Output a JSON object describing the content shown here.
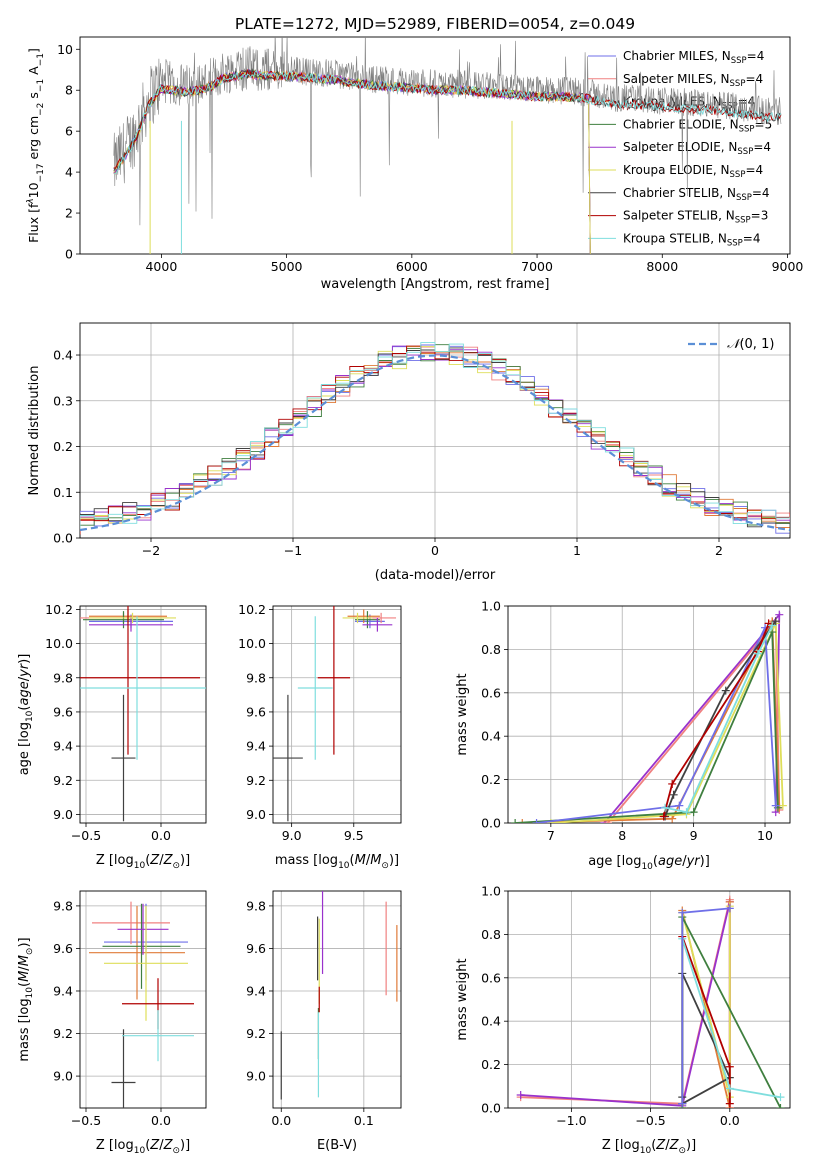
{
  "figure": {
    "title": "PLATE=1272, MJD=52989, FIBERID=0054, z=0.049"
  },
  "colors": {
    "Chabrier MILES": "#6f6fe8",
    "Salpeter MILES": "#f08080",
    "Kroupa MILES": "#e07b39",
    "Chabrier ELODIE": "#3f7f3f",
    "Salpeter ELODIE": "#9932cc",
    "Kroupa ELODIE": "#dede5a",
    "Chabrier STELIB": "#404040",
    "Salpeter STELIB": "#b00000",
    "Kroupa STELIB": "#7fdede",
    "data": "#808080",
    "gaussian": "#5b8fd6",
    "grid": "#b0b0b0"
  },
  "chart_data": [
    {
      "id": "spectrum",
      "type": "line",
      "title": "PLATE=1272, MJD=52989, FIBERID=0054, z=0.049",
      "xlabel": "wavelength [Angstrom, rest frame]",
      "ylabel_parts": [
        "Flux [f",
        "λ",
        "10",
        "−17",
        " erg cm",
        "−2",
        " s",
        "−1",
        " A",
        "−1",
        "]"
      ],
      "xlim": [
        3350,
        9020
      ],
      "ylim": [
        0,
        10.6
      ],
      "xticks": [
        4000,
        5000,
        6000,
        7000,
        8000,
        9000
      ],
      "yticks": [
        0,
        2,
        4,
        6,
        8,
        10
      ],
      "grid": false,
      "legend_position": "upper right",
      "legend": [
        {
          "label": "Chabrier MILES, N",
          "sub": "SSP",
          "suffix": "=4"
        },
        {
          "label": "Salpeter MILES, N",
          "sub": "SSP",
          "suffix": "=4"
        },
        {
          "label": "Kroupa MILES, N",
          "sub": "SSP",
          "suffix": "=4"
        },
        {
          "label": "Chabrier ELODIE, N",
          "sub": "SSP",
          "suffix": "=5"
        },
        {
          "label": "Salpeter ELODIE, N",
          "sub": "SSP",
          "suffix": "=4"
        },
        {
          "label": "Kroupa ELODIE, N",
          "sub": "SSP",
          "suffix": "=4"
        },
        {
          "label": "Chabrier STELIB, N",
          "sub": "SSP",
          "suffix": "=4"
        },
        {
          "label": "Salpeter STELIB, N",
          "sub": "SSP",
          "suffix": "=3"
        },
        {
          "label": "Kroupa STELIB, N",
          "sub": "SSP",
          "suffix": "=4"
        }
      ],
      "continuum": [
        [
          3620,
          4.3
        ],
        [
          3700,
          5.0
        ],
        [
          3800,
          6.0
        ],
        [
          3900,
          7.6
        ],
        [
          4000,
          8.4
        ],
        [
          4100,
          8.3
        ],
        [
          4200,
          8.2
        ],
        [
          4300,
          8.3
        ],
        [
          4400,
          8.5
        ],
        [
          4500,
          8.9
        ],
        [
          4600,
          9.0
        ],
        [
          4700,
          9.1
        ],
        [
          4800,
          9.0
        ],
        [
          5000,
          9.0
        ],
        [
          5200,
          8.9
        ],
        [
          5400,
          8.8
        ],
        [
          5600,
          8.6
        ],
        [
          5800,
          8.5
        ],
        [
          6000,
          8.4
        ],
        [
          6200,
          8.3
        ],
        [
          6400,
          8.3
        ],
        [
          6600,
          8.2
        ],
        [
          6800,
          8.1
        ],
        [
          7000,
          8.0
        ],
        [
          7200,
          8.0
        ],
        [
          7400,
          7.9
        ],
        [
          7600,
          7.6
        ],
        [
          7800,
          7.6
        ],
        [
          8000,
          7.5
        ],
        [
          8200,
          7.4
        ],
        [
          8400,
          7.3
        ],
        [
          8600,
          7.2
        ],
        [
          8800,
          7.0
        ],
        [
          8950,
          7.0
        ]
      ]
    },
    {
      "id": "residuals",
      "type": "histogram",
      "xlabel": "(data-model)/error",
      "ylabel": "Normed distribution",
      "xlim": [
        -2.5,
        2.5
      ],
      "ylim": [
        0,
        0.47
      ],
      "xticks": [
        -2,
        -1,
        0,
        1,
        2
      ],
      "yticks": [
        0.0,
        0.1,
        0.2,
        0.3,
        0.4
      ],
      "grid": true,
      "legend_position": "upper right",
      "legend": "N(0,1)"
    },
    {
      "id": "age_vs_Z",
      "type": "errorbar",
      "xlabel": "Z [log10(Z/Z⊙)]",
      "ylabel": "age  [log10(age/yr)]",
      "xlim": [
        -0.54,
        0.3
      ],
      "ylim": [
        8.95,
        10.22
      ],
      "xticks": [
        -0.5,
        0.0
      ],
      "yticks": [
        9.0,
        9.2,
        9.4,
        9.6,
        9.8,
        10.0,
        10.2
      ],
      "grid": true,
      "series": [
        {
          "name": "Chabrier MILES",
          "x": -0.2,
          "y": 10.13,
          "xerr": 0.28,
          "yerr": 0.04
        },
        {
          "name": "Salpeter MILES",
          "x": -0.25,
          "y": 10.15,
          "xerr": 0.3,
          "yerr": 0.03
        },
        {
          "name": "Kroupa MILES",
          "x": -0.22,
          "y": 10.16,
          "xerr": 0.26,
          "yerr": 0.04
        },
        {
          "name": "Chabrier ELODIE",
          "x": -0.25,
          "y": 10.14,
          "xerr": 0.27,
          "yerr": 0.05
        },
        {
          "name": "Salpeter ELODIE",
          "x": -0.2,
          "y": 10.11,
          "xerr": 0.28,
          "yerr": 0.04
        },
        {
          "name": "Kroupa ELODIE",
          "x": -0.19,
          "y": 10.15,
          "xerr": 0.29,
          "yerr": 0.03
        },
        {
          "name": "Chabrier STELIB",
          "x": -0.25,
          "y": 9.33,
          "xerr": 0.08,
          "yerr": 0.37
        },
        {
          "name": "Salpeter STELIB",
          "x": -0.22,
          "y": 9.8,
          "xerr": 0.48,
          "yerr": 0.45
        },
        {
          "name": "Kroupa STELIB",
          "x": -0.16,
          "y": 9.74,
          "xerr": 0.46,
          "yerr": 0.42
        }
      ]
    },
    {
      "id": "age_vs_mass",
      "type": "errorbar",
      "xlabel": "mass [log10(M/M⊙)]",
      "xlim": [
        8.85,
        9.88
      ],
      "ylim": [
        8.95,
        10.22
      ],
      "xticks": [
        9.0,
        9.5
      ],
      "yticks": [
        9.0,
        9.2,
        9.4,
        9.6,
        9.8,
        10.0,
        10.2
      ],
      "grid": true,
      "series": [
        {
          "name": "Chabrier MILES",
          "x": 9.63,
          "y": 10.13,
          "xerr": 0.12,
          "yerr": 0.04
        },
        {
          "name": "Salpeter MILES",
          "x": 9.72,
          "y": 10.15,
          "xerr": 0.12,
          "yerr": 0.03
        },
        {
          "name": "Kroupa MILES",
          "x": 9.58,
          "y": 10.16,
          "xerr": 0.13,
          "yerr": 0.04
        },
        {
          "name": "Chabrier ELODIE",
          "x": 9.61,
          "y": 10.14,
          "xerr": 0.1,
          "yerr": 0.05
        },
        {
          "name": "Salpeter ELODIE",
          "x": 9.69,
          "y": 10.11,
          "xerr": 0.12,
          "yerr": 0.04
        },
        {
          "name": "Kroupa ELODIE",
          "x": 9.53,
          "y": 10.15,
          "xerr": 0.12,
          "yerr": 0.03
        },
        {
          "name": "Chabrier STELIB",
          "x": 8.97,
          "y": 9.33,
          "xerr": 0.12,
          "yerr": 0.37
        },
        {
          "name": "Salpeter STELIB",
          "x": 9.34,
          "y": 9.8,
          "xerr": 0.13,
          "yerr": 0.45
        },
        {
          "name": "Kroupa STELIB",
          "x": 9.19,
          "y": 9.74,
          "xerr": 0.14,
          "yerr": 0.42
        }
      ]
    },
    {
      "id": "weight_vs_age",
      "type": "line",
      "xlabel": "age  [log10(age/yr)]",
      "ylabel": "mass weight",
      "xlim": [
        6.4,
        10.35
      ],
      "ylim": [
        0.0,
        1.0
      ],
      "xticks": [
        7,
        8,
        9,
        10
      ],
      "yticks": [
        0.0,
        0.2,
        0.4,
        0.6,
        0.8,
        1.0
      ],
      "grid": true,
      "series": [
        {
          "name": "Salpeter ELODIE",
          "x": [
            7.75,
            10.2,
            10.15
          ],
          "y": [
            0.0,
            0.96,
            0.05
          ]
        },
        {
          "name": "Salpeter MILES",
          "x": [
            7.8,
            10.15,
            10.2
          ],
          "y": [
            0.0,
            0.93,
            0.06
          ]
        },
        {
          "name": "Kroupa MILES",
          "x": [
            6.6,
            8.7,
            10.1,
            10.2
          ],
          "y": [
            0.0,
            0.02,
            0.93,
            0.07
          ]
        },
        {
          "name": "Kroupa ELODIE",
          "x": [
            7.0,
            8.9,
            10.15,
            10.25
          ],
          "y": [
            0.0,
            0.04,
            0.92,
            0.08
          ]
        },
        {
          "name": "Chabrier ELODIE",
          "x": [
            6.5,
            9.0,
            10.1,
            10.18
          ],
          "y": [
            0.0,
            0.05,
            0.88,
            0.07
          ]
        },
        {
          "name": "Chabrier MILES",
          "x": [
            6.8,
            8.8,
            10.0,
            10.15
          ],
          "y": [
            0.0,
            0.08,
            0.9,
            0.08
          ]
        },
        {
          "name": "Chabrier STELIB",
          "x": [
            8.6,
            8.72,
            9.45,
            10.15
          ],
          "y": [
            0.03,
            0.13,
            0.61,
            0.93
          ]
        },
        {
          "name": "Salpeter STELIB",
          "x": [
            8.58,
            8.7,
            9.9,
            10.05
          ],
          "y": [
            0.03,
            0.18,
            0.79,
            0.92
          ]
        },
        {
          "name": "Kroupa STELIB",
          "x": [
            8.6,
            8.9,
            9.9,
            10.1
          ],
          "y": [
            0.07,
            0.05,
            0.78,
            0.91
          ]
        }
      ]
    },
    {
      "id": "mass_vs_Z",
      "type": "errorbar",
      "xlabel": "Z [log10(Z/Z⊙)]",
      "ylabel": "mass [log10(M/M⊙)]",
      "xlim": [
        -0.54,
        0.3
      ],
      "ylim": [
        8.85,
        9.87
      ],
      "xticks": [
        -0.5,
        0.0
      ],
      "yticks": [
        9.0,
        9.2,
        9.4,
        9.6,
        9.8
      ],
      "grid": true,
      "series": [
        {
          "name": "Chabrier MILES",
          "x": -0.1,
          "y": 9.63,
          "xerr": 0.28,
          "yerr": 0.18
        },
        {
          "name": "Salpeter MILES",
          "x": -0.2,
          "y": 9.72,
          "xerr": 0.26,
          "yerr": 0.1
        },
        {
          "name": "Kroupa MILES",
          "x": -0.16,
          "y": 9.58,
          "xerr": 0.32,
          "yerr": 0.22
        },
        {
          "name": "Chabrier ELODIE",
          "x": -0.13,
          "y": 9.61,
          "xerr": 0.26,
          "yerr": 0.2
        },
        {
          "name": "Salpeter ELODIE",
          "x": -0.12,
          "y": 9.69,
          "xerr": 0.17,
          "yerr": 0.12
        },
        {
          "name": "Kroupa ELODIE",
          "x": -0.1,
          "y": 9.53,
          "xerr": 0.28,
          "yerr": 0.27
        },
        {
          "name": "Chabrier STELIB",
          "x": -0.25,
          "y": 8.97,
          "xerr": 0.08,
          "yerr": 0.25
        },
        {
          "name": "Salpeter STELIB",
          "x": -0.02,
          "y": 9.34,
          "xerr": 0.24,
          "yerr": 0.12
        },
        {
          "name": "Kroupa STELIB",
          "x": -0.02,
          "y": 9.19,
          "xerr": 0.24,
          "yerr": 0.12
        }
      ]
    },
    {
      "id": "mass_vs_ebv",
      "type": "errorbar",
      "xlabel": "E(B-V)",
      "xlim": [
        -0.01,
        0.145
      ],
      "ylim": [
        8.85,
        9.87
      ],
      "xticks": [
        0.0,
        0.1
      ],
      "yticks": [
        9.0,
        9.2,
        9.4,
        9.6,
        9.8
      ],
      "grid": true,
      "series": [
        {
          "name": "Chabrier STELIB",
          "x": 0.0,
          "y": 9.05,
          "yerr": 0.16
        },
        {
          "name": "Chabrier ELODIE",
          "x": 0.045,
          "y": 9.2,
          "yerr": 0.12
        },
        {
          "name": "Kroupa STELIB",
          "x": 0.045,
          "y": 9.1,
          "yerr": 0.2
        },
        {
          "name": "Kroupa ELODIE",
          "x": 0.046,
          "y": 9.54,
          "yerr": 0.2
        },
        {
          "name": "Chabrier STELIB",
          "x": 0.044,
          "y": 9.6,
          "yerr": 0.15
        },
        {
          "name": "Salpeter STELIB",
          "x": 0.046,
          "y": 9.36,
          "yerr": 0.06
        },
        {
          "name": "Salpeter ELODIE",
          "x": 0.05,
          "y": 9.7,
          "yerr": 0.22
        },
        {
          "name": "Salpeter MILES",
          "x": 0.127,
          "y": 9.6,
          "yerr": 0.22
        },
        {
          "name": "Kroupa MILES",
          "x": 0.14,
          "y": 9.53,
          "yerr": 0.18
        }
      ]
    },
    {
      "id": "weight_vs_Z",
      "type": "line",
      "xlabel": "Z [log10(Z/Z⊙)]",
      "ylabel": "mass weight",
      "xlim": [
        -1.4,
        0.38
      ],
      "ylim": [
        0.0,
        1.0
      ],
      "xticks": [
        -1.0,
        -0.5,
        0.0
      ],
      "yticks": [
        0.0,
        0.2,
        0.4,
        0.6,
        0.8,
        1.0
      ],
      "grid": true,
      "series": [
        {
          "name": "Salpeter MILES",
          "x": [
            -1.32,
            -0.3,
            0.0,
            0.0
          ],
          "y": [
            0.05,
            0.02,
            0.96,
            0.0
          ]
        },
        {
          "name": "Salpeter ELODIE",
          "x": [
            -1.32,
            -0.3,
            0.0,
            0.0
          ],
          "y": [
            0.06,
            0.01,
            0.95,
            0.0
          ]
        },
        {
          "name": "Kroupa MILES",
          "x": [
            -0.3,
            -0.3,
            0.0,
            0.0
          ],
          "y": [
            0.0,
            0.91,
            0.0,
            0.95
          ]
        },
        {
          "name": "Kroupa ELODIE",
          "x": [
            -0.3,
            -0.3,
            0.0,
            0.0
          ],
          "y": [
            0.0,
            0.9,
            0.05,
            0.93
          ]
        },
        {
          "name": "Chabrier ELODIE",
          "x": [
            -0.3,
            -0.3,
            0.32
          ],
          "y": [
            0.0,
            0.88,
            0.0
          ]
        },
        {
          "name": "Chabrier STELIB",
          "x": [
            -0.3,
            -0.3,
            0.0,
            -0.3
          ],
          "y": [
            0.05,
            0.62,
            0.14,
            0.02
          ]
        },
        {
          "name": "Salpeter STELIB",
          "x": [
            -0.3,
            0.0,
            0.0
          ],
          "y": [
            0.79,
            0.19,
            0.02
          ]
        },
        {
          "name": "Kroupa STELIB",
          "x": [
            -0.3,
            0.0,
            0.32
          ],
          "y": [
            0.78,
            0.09,
            0.05
          ]
        },
        {
          "name": "Chabrier MILES",
          "x": [
            -0.3,
            -0.3,
            0.0
          ],
          "y": [
            0.02,
            0.9,
            0.92
          ]
        }
      ]
    }
  ]
}
